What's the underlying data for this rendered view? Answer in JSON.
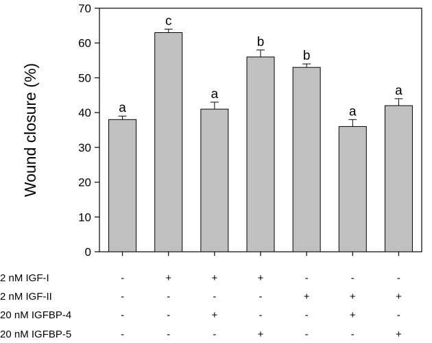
{
  "chart_data": {
    "type": "bar",
    "title": "",
    "ylabel": "Wound closure (%)",
    "ylim": [
      0,
      70
    ],
    "yticks": [
      0,
      10,
      20,
      30,
      40,
      50,
      60,
      70
    ],
    "bar_color": "#c0c0c0",
    "values": [
      38,
      63,
      41,
      56,
      53,
      36,
      42
    ],
    "errors": [
      1,
      1,
      2,
      2,
      1,
      2,
      2
    ],
    "significance": [
      "a",
      "c",
      "a",
      "b",
      "b",
      "a",
      "a"
    ],
    "treatments": [
      {
        "label": "2 nM IGF-I",
        "marks": [
          "-",
          "+",
          "+",
          "+",
          "-",
          "-",
          "-"
        ]
      },
      {
        "label": "2 nM IGF-II",
        "marks": [
          "-",
          "-",
          "-",
          "-",
          "+",
          "+",
          "+"
        ]
      },
      {
        "label": "20 nM IGFBP-4",
        "marks": [
          "-",
          "-",
          "+",
          "-",
          "-",
          "+",
          "-"
        ]
      },
      {
        "label": "20 nM IGFBP-5",
        "marks": [
          "-",
          "-",
          "-",
          "+",
          "-",
          "-",
          "+"
        ]
      }
    ]
  }
}
